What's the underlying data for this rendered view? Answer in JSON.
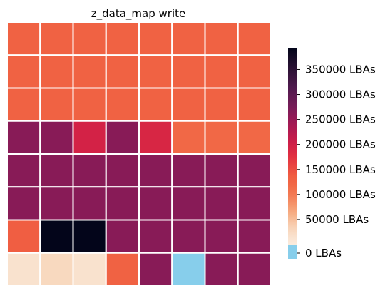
{
  "chart_data": {
    "type": "heatmap",
    "title": "z_data_map write",
    "xlabel": "",
    "ylabel": "",
    "rows": 8,
    "cols": 8,
    "values": [
      [
        130000,
        130000,
        130000,
        130000,
        130000,
        130000,
        130000,
        130000
      ],
      [
        130000,
        130000,
        130000,
        130000,
        130000,
        130000,
        130000,
        130000
      ],
      [
        130000,
        130000,
        130000,
        130000,
        130000,
        130000,
        130000,
        130000
      ],
      [
        262000,
        262000,
        195000,
        262000,
        190000,
        120000,
        120000,
        120000
      ],
      [
        262000,
        262000,
        262000,
        262000,
        262000,
        262000,
        262000,
        262000
      ],
      [
        262000,
        262000,
        262000,
        262000,
        262000,
        262000,
        262000,
        262000
      ],
      [
        135000,
        392000,
        392000,
        262000,
        262000,
        262000,
        262000,
        262000
      ],
      [
        15000,
        30000,
        15000,
        130000,
        262000,
        0,
        262000,
        262000
      ]
    ],
    "colorbar": {
      "min": 0,
      "max": 392000,
      "ticks": [
        0,
        50000,
        100000,
        150000,
        200000,
        250000,
        300000,
        350000
      ],
      "tick_labels": [
        "0 LBAs",
        "50000 LBAs",
        "100000 LBAs",
        "150000 LBAs",
        "200000 LBAs",
        "250000 LBAs",
        "300000 LBAs",
        "350000 LBAs"
      ],
      "zero_color": "#87ceeb"
    },
    "grid": true,
    "legend": "right"
  }
}
